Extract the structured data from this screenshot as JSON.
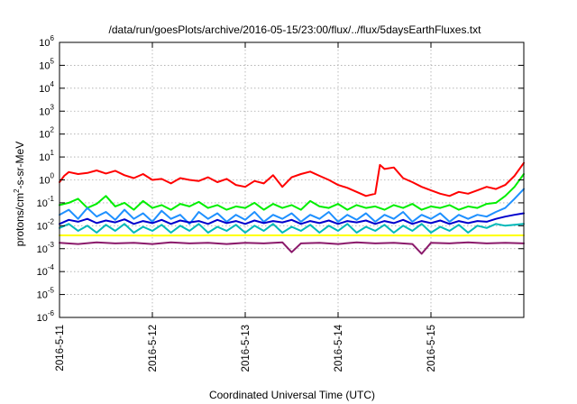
{
  "chart_data": {
    "type": "line",
    "title": "/data/run/goesPlots/archive/2016-05-15/23:00/flux/../flux/5daysEarthFluxes.txt",
    "xlabel": "Coordinated Universal Time (UTC)",
    "ylabel": {
      "prefix": "protons/cm",
      "sup": "2",
      "suffix": "-s-sr-MeV"
    },
    "x_ticks": [
      "2016-5-11",
      "2016-5-12",
      "2016-5-13",
      "2016-5-14",
      "2016-5-15"
    ],
    "xlim": [
      0,
      5
    ],
    "y_scale": "log",
    "ylim": [
      1e-06,
      1000000.0
    ],
    "y_ticks": [
      {
        "base": "10",
        "exp": "6"
      },
      {
        "base": "10",
        "exp": "5"
      },
      {
        "base": "10",
        "exp": "4"
      },
      {
        "base": "10",
        "exp": "3"
      },
      {
        "base": "10",
        "exp": "2"
      },
      {
        "base": "10",
        "exp": "1"
      },
      {
        "base": "10",
        "exp": "0"
      },
      {
        "base": "10",
        "exp": "-1"
      },
      {
        "base": "10",
        "exp": "-2"
      },
      {
        "base": "10",
        "exp": "-3"
      },
      {
        "base": "10",
        "exp": "-4"
      },
      {
        "base": "10",
        "exp": "-5"
      },
      {
        "base": "10",
        "exp": "-6"
      }
    ],
    "grid": true,
    "legend": "none",
    "series": [
      {
        "color": "#ff0000",
        "x": [
          0,
          0.05,
          0.1,
          0.2,
          0.3,
          0.4,
          0.5,
          0.6,
          0.7,
          0.8,
          0.9,
          1.0,
          1.1,
          1.2,
          1.3,
          1.4,
          1.5,
          1.6,
          1.7,
          1.8,
          1.9,
          2.0,
          2.1,
          2.2,
          2.3,
          2.4,
          2.5,
          2.6,
          2.7,
          2.8,
          2.9,
          3.0,
          3.1,
          3.2,
          3.3,
          3.4,
          3.45,
          3.5,
          3.6,
          3.7,
          3.8,
          3.9,
          4.0,
          4.1,
          4.2,
          4.3,
          4.4,
          4.5,
          4.6,
          4.7,
          4.8,
          4.9,
          5.0
        ],
        "y": [
          0.8,
          1.5,
          2.2,
          1.8,
          2.0,
          2.6,
          1.9,
          2.5,
          1.6,
          1.2,
          1.8,
          1.0,
          1.1,
          0.7,
          1.2,
          1.0,
          0.9,
          1.3,
          0.8,
          1.1,
          0.6,
          0.5,
          0.9,
          0.7,
          1.6,
          0.5,
          1.3,
          1.8,
          2.3,
          1.5,
          1.0,
          0.6,
          0.45,
          0.3,
          0.2,
          0.25,
          4.5,
          3.0,
          3.5,
          1.2,
          0.8,
          0.5,
          0.35,
          0.25,
          0.2,
          0.3,
          0.25,
          0.35,
          0.5,
          0.4,
          0.6,
          1.5,
          5.5
        ]
      },
      {
        "color": "#00ee00",
        "x": [
          0,
          0.1,
          0.2,
          0.3,
          0.4,
          0.5,
          0.6,
          0.7,
          0.8,
          0.9,
          1.0,
          1.1,
          1.2,
          1.3,
          1.4,
          1.5,
          1.6,
          1.7,
          1.8,
          1.9,
          2.0,
          2.1,
          2.2,
          2.3,
          2.4,
          2.5,
          2.6,
          2.7,
          2.8,
          2.9,
          3.0,
          3.1,
          3.2,
          3.3,
          3.4,
          3.5,
          3.6,
          3.7,
          3.8,
          3.9,
          4.0,
          4.1,
          4.2,
          4.3,
          4.4,
          4.5,
          4.6,
          4.7,
          4.8,
          4.9,
          5.0
        ],
        "y": [
          0.08,
          0.1,
          0.15,
          0.06,
          0.09,
          0.2,
          0.07,
          0.1,
          0.05,
          0.12,
          0.06,
          0.08,
          0.05,
          0.09,
          0.07,
          0.11,
          0.06,
          0.08,
          0.05,
          0.07,
          0.06,
          0.1,
          0.05,
          0.09,
          0.06,
          0.08,
          0.05,
          0.12,
          0.07,
          0.06,
          0.09,
          0.05,
          0.08,
          0.06,
          0.07,
          0.05,
          0.08,
          0.06,
          0.09,
          0.05,
          0.07,
          0.06,
          0.08,
          0.05,
          0.07,
          0.06,
          0.09,
          0.1,
          0.2,
          0.5,
          1.8
        ]
      },
      {
        "color": "#1e90ff",
        "x": [
          0,
          0.1,
          0.2,
          0.3,
          0.4,
          0.5,
          0.6,
          0.7,
          0.8,
          0.9,
          1.0,
          1.1,
          1.2,
          1.3,
          1.4,
          1.5,
          1.6,
          1.7,
          1.8,
          1.9,
          2.0,
          2.1,
          2.2,
          2.3,
          2.4,
          2.5,
          2.6,
          2.7,
          2.8,
          2.9,
          3.0,
          3.1,
          3.2,
          3.3,
          3.4,
          3.5,
          3.6,
          3.7,
          3.8,
          3.9,
          4.0,
          4.1,
          4.2,
          4.3,
          4.4,
          4.5,
          4.6,
          4.7,
          4.8,
          4.9,
          5.0
        ],
        "y": [
          0.03,
          0.05,
          0.02,
          0.06,
          0.025,
          0.04,
          0.018,
          0.05,
          0.02,
          0.035,
          0.015,
          0.045,
          0.02,
          0.03,
          0.012,
          0.04,
          0.02,
          0.035,
          0.015,
          0.03,
          0.018,
          0.04,
          0.015,
          0.03,
          0.02,
          0.035,
          0.015,
          0.03,
          0.02,
          0.04,
          0.015,
          0.03,
          0.018,
          0.035,
          0.015,
          0.03,
          0.02,
          0.04,
          0.015,
          0.03,
          0.02,
          0.035,
          0.015,
          0.03,
          0.02,
          0.03,
          0.025,
          0.04,
          0.06,
          0.15,
          0.4
        ]
      },
      {
        "color": "#0000cd",
        "x": [
          0,
          0.1,
          0.2,
          0.3,
          0.4,
          0.5,
          0.6,
          0.7,
          0.8,
          0.9,
          1.0,
          1.1,
          1.2,
          1.3,
          1.4,
          1.5,
          1.6,
          1.7,
          1.8,
          1.9,
          2.0,
          2.1,
          2.2,
          2.3,
          2.4,
          2.5,
          2.6,
          2.7,
          2.8,
          2.9,
          3.0,
          3.1,
          3.2,
          3.3,
          3.4,
          3.5,
          3.6,
          3.7,
          3.8,
          3.9,
          4.0,
          4.1,
          4.2,
          4.3,
          4.4,
          4.5,
          4.6,
          4.7,
          4.8,
          4.9,
          5.0
        ],
        "y": [
          0.012,
          0.018,
          0.015,
          0.02,
          0.013,
          0.017,
          0.014,
          0.019,
          0.012,
          0.016,
          0.013,
          0.018,
          0.012,
          0.017,
          0.014,
          0.016,
          0.012,
          0.018,
          0.013,
          0.016,
          0.012,
          0.017,
          0.013,
          0.016,
          0.014,
          0.018,
          0.012,
          0.016,
          0.013,
          0.017,
          0.012,
          0.016,
          0.014,
          0.017,
          0.012,
          0.016,
          0.013,
          0.018,
          0.012,
          0.016,
          0.013,
          0.017,
          0.012,
          0.016,
          0.013,
          0.016,
          0.015,
          0.02,
          0.025,
          0.03,
          0.035
        ]
      },
      {
        "color": "#00b8b8",
        "x": [
          0,
          0.1,
          0.2,
          0.3,
          0.4,
          0.5,
          0.6,
          0.7,
          0.8,
          0.9,
          1.0,
          1.1,
          1.2,
          1.3,
          1.4,
          1.5,
          1.6,
          1.7,
          1.8,
          1.9,
          2.0,
          2.1,
          2.2,
          2.3,
          2.4,
          2.5,
          2.6,
          2.7,
          2.8,
          2.9,
          3.0,
          3.1,
          3.2,
          3.3,
          3.4,
          3.5,
          3.6,
          3.7,
          3.8,
          3.9,
          4.0,
          4.1,
          4.2,
          4.3,
          4.4,
          4.5,
          4.6,
          4.7,
          4.8,
          4.9,
          5.0
        ],
        "y": [
          0.008,
          0.012,
          0.006,
          0.01,
          0.005,
          0.011,
          0.006,
          0.012,
          0.005,
          0.009,
          0.006,
          0.011,
          0.005,
          0.01,
          0.006,
          0.012,
          0.005,
          0.009,
          0.006,
          0.011,
          0.005,
          0.01,
          0.006,
          0.012,
          0.005,
          0.009,
          0.006,
          0.011,
          0.005,
          0.01,
          0.006,
          0.012,
          0.005,
          0.009,
          0.006,
          0.011,
          0.005,
          0.01,
          0.006,
          0.012,
          0.005,
          0.009,
          0.006,
          0.011,
          0.005,
          0.01,
          0.008,
          0.012,
          0.01,
          0.011,
          0.012
        ]
      },
      {
        "color": "#ffff00",
        "x": [
          0,
          1,
          2,
          3,
          4,
          5
        ],
        "y": [
          0.0038,
          0.0037,
          0.0038,
          0.0038,
          0.0037,
          0.0038
        ]
      },
      {
        "color": "#8b1a6b",
        "x": [
          0,
          0.2,
          0.4,
          0.6,
          0.8,
          1.0,
          1.2,
          1.4,
          1.6,
          1.8,
          2.0,
          2.2,
          2.4,
          2.5,
          2.6,
          2.8,
          3.0,
          3.2,
          3.4,
          3.6,
          3.8,
          3.9,
          4.0,
          4.2,
          4.4,
          4.6,
          4.8,
          5.0
        ],
        "y": [
          0.0018,
          0.0016,
          0.0019,
          0.0017,
          0.0018,
          0.0016,
          0.0019,
          0.0017,
          0.0018,
          0.0016,
          0.0018,
          0.0017,
          0.0019,
          0.0007,
          0.0017,
          0.0018,
          0.0016,
          0.0019,
          0.0017,
          0.0018,
          0.0016,
          0.0006,
          0.0018,
          0.0017,
          0.0019,
          0.0017,
          0.0018,
          0.0017
        ]
      }
    ]
  }
}
